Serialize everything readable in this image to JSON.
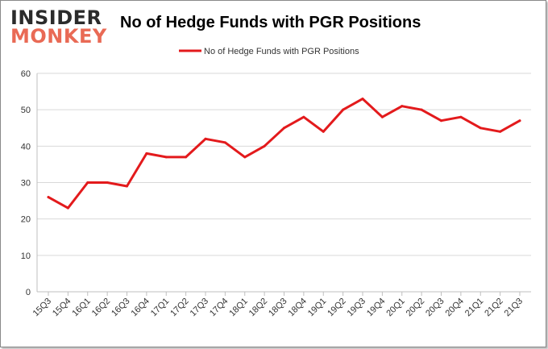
{
  "logo": {
    "line1": "INSIDER",
    "line2": "MONKEY"
  },
  "chart_data": {
    "type": "line",
    "title": "No of Hedge Funds with PGR Positions",
    "xlabel": "",
    "ylabel": "",
    "categories": [
      "15Q3",
      "15Q4",
      "16Q1",
      "16Q2",
      "16Q3",
      "16Q4",
      "17Q1",
      "17Q2",
      "17Q3",
      "17Q4",
      "18Q1",
      "18Q2",
      "18Q3",
      "18Q4",
      "19Q1",
      "19Q2",
      "19Q3",
      "19Q4",
      "20Q1",
      "20Q2",
      "20Q3",
      "20Q4",
      "21Q1",
      "21Q2",
      "21Q3"
    ],
    "series": [
      {
        "name": "No of Hedge Funds with PGR Positions",
        "color": "#e31a1c",
        "values": [
          26,
          23,
          30,
          30,
          29,
          38,
          37,
          37,
          42,
          41,
          37,
          40,
          45,
          48,
          44,
          50,
          53,
          48,
          51,
          50,
          47,
          48,
          45,
          44,
          47
        ]
      }
    ],
    "ylim": [
      0,
      60
    ],
    "yticks": [
      0,
      10,
      20,
      30,
      40,
      50,
      60
    ],
    "grid": true,
    "legend_position": "top-center"
  }
}
